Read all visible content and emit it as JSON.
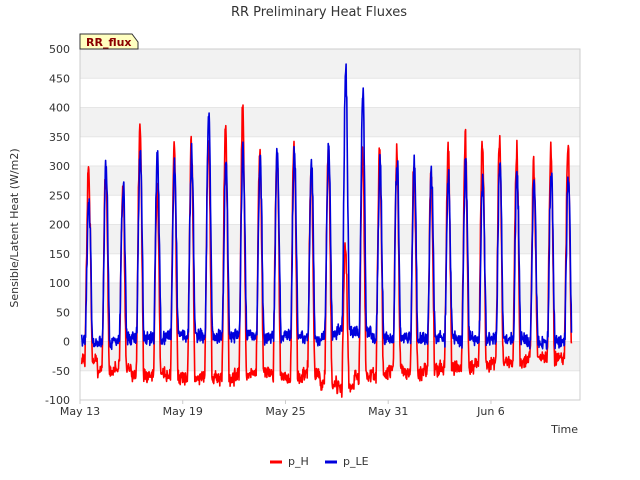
{
  "chart_data": {
    "type": "line",
    "title": "RR Preliminary Heat Fluxes",
    "xlabel": "Time",
    "ylabel": "Sensible/Latent Heat (W/m2)",
    "badge": "RR_flux",
    "ylim": [
      -100,
      500
    ],
    "xlim": [
      0,
      29.2
    ],
    "yticks": [
      -100,
      -50,
      0,
      50,
      100,
      150,
      200,
      250,
      300,
      350,
      400,
      450,
      500
    ],
    "xticks": [
      {
        "day": 0,
        "label": "May 13"
      },
      {
        "day": 6,
        "label": "May 19"
      },
      {
        "day": 12,
        "label": "May 25"
      },
      {
        "day": 18,
        "label": "May 31"
      },
      {
        "day": 24,
        "label": "Jun 6"
      }
    ],
    "start_day": 0.1,
    "days": 28.6,
    "series": [
      {
        "name": "p_H",
        "color": "#ff0000",
        "daily_peak": [
          300,
          300,
          250,
          370,
          260,
          330,
          340,
          350,
          360,
          400,
          320,
          330,
          340,
          300,
          330,
          160,
          320,
          330,
          320,
          300,
          280,
          330,
          350,
          340,
          350,
          330,
          300,
          330,
          330
        ],
        "daily_min": [
          -30,
          -50,
          -45,
          -60,
          -55,
          -60,
          -65,
          -60,
          -65,
          -55,
          -50,
          -55,
          -60,
          -55,
          -70,
          -80,
          -60,
          -55,
          -50,
          -55,
          -50,
          -45,
          -45,
          -40,
          -35,
          -35,
          -30,
          -30,
          -30
        ]
      },
      {
        "name": "p_LE",
        "color": "#0000dd",
        "daily_peak": [
          240,
          300,
          270,
          330,
          320,
          300,
          320,
          385,
          300,
          330,
          305,
          320,
          325,
          300,
          335,
          460,
          430,
          300,
          310,
          300,
          290,
          280,
          300,
          270,
          300,
          280,
          270,
          290,
          280
        ],
        "daily_min": [
          0,
          0,
          5,
          5,
          5,
          10,
          10,
          10,
          10,
          10,
          5,
          10,
          10,
          5,
          10,
          20,
          15,
          5,
          5,
          5,
          5,
          5,
          5,
          5,
          5,
          5,
          0,
          0,
          0
        ]
      }
    ]
  }
}
